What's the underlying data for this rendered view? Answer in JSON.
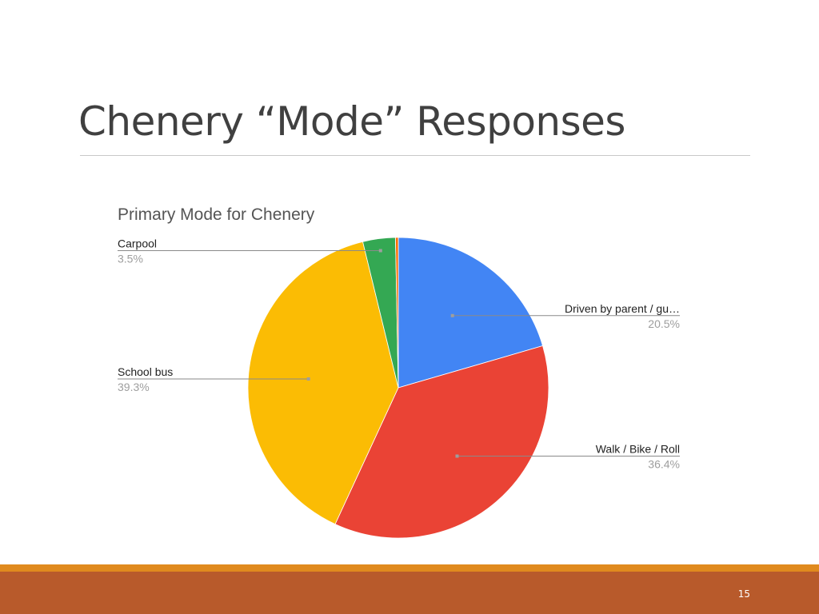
{
  "slide": {
    "title": "Chenery “Mode” Responses",
    "page_number": "15"
  },
  "colors": {
    "footer_band": "#b85a2b",
    "footer_accent": "#e08a1e"
  },
  "chart_data": {
    "type": "pie",
    "title": "Primary Mode for Chenery",
    "start_angle_deg": 0,
    "direction": "clockwise",
    "slices": [
      {
        "label": "Driven by parent / gu…",
        "percent_label": "20.5%",
        "value": 20.5,
        "color": "#4285f4",
        "label_side": "right"
      },
      {
        "label": "Walk / Bike / Roll",
        "percent_label": "36.4%",
        "value": 36.4,
        "color": "#ea4335",
        "label_side": "right"
      },
      {
        "label": "School bus",
        "percent_label": "39.3%",
        "value": 39.3,
        "color": "#fbbc04",
        "label_side": "left"
      },
      {
        "label": "Carpool",
        "percent_label": "3.5%",
        "value": 3.5,
        "color": "#34a853",
        "label_side": "left"
      },
      {
        "label": "",
        "percent_label": "",
        "value": 0.3,
        "color": "#ff6d01",
        "label_side": "none"
      }
    ]
  }
}
